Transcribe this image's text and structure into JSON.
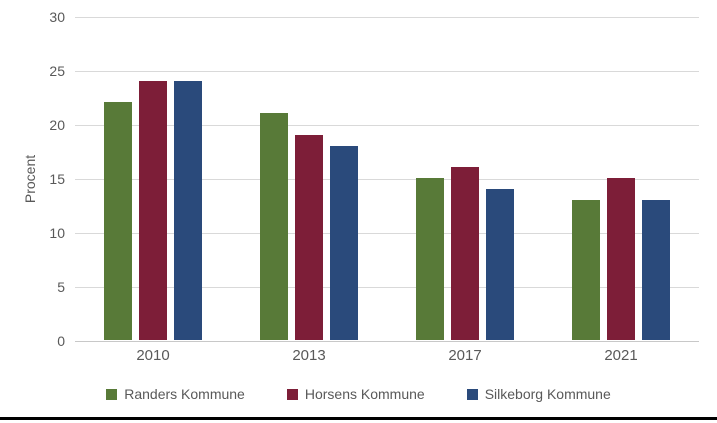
{
  "chart_data": {
    "type": "bar",
    "title": "",
    "xlabel": "",
    "ylabel": "Procent",
    "categories": [
      "2010",
      "2013",
      "2017",
      "2021"
    ],
    "series": [
      {
        "name": "Randers Kommune",
        "color": "#587A38",
        "values": [
          22,
          21,
          15,
          13
        ]
      },
      {
        "name": "Horsens Kommune",
        "color": "#7D1E38",
        "values": [
          24,
          19,
          16,
          15
        ]
      },
      {
        "name": "Silkeborg Kommune",
        "color": "#2A4A7B",
        "values": [
          24,
          18,
          14,
          13
        ]
      }
    ],
    "ylim": [
      0,
      30
    ],
    "ytick_step": 5,
    "y_tick_labels": [
      "30",
      "25",
      "20",
      "15",
      "10",
      "5",
      "0"
    ],
    "grid": true,
    "legend_position": "bottom"
  },
  "style": {
    "gridline_color": "#d9d9d9",
    "axis_text_color": "#595959",
    "bottom_rule_color": "#000000"
  }
}
